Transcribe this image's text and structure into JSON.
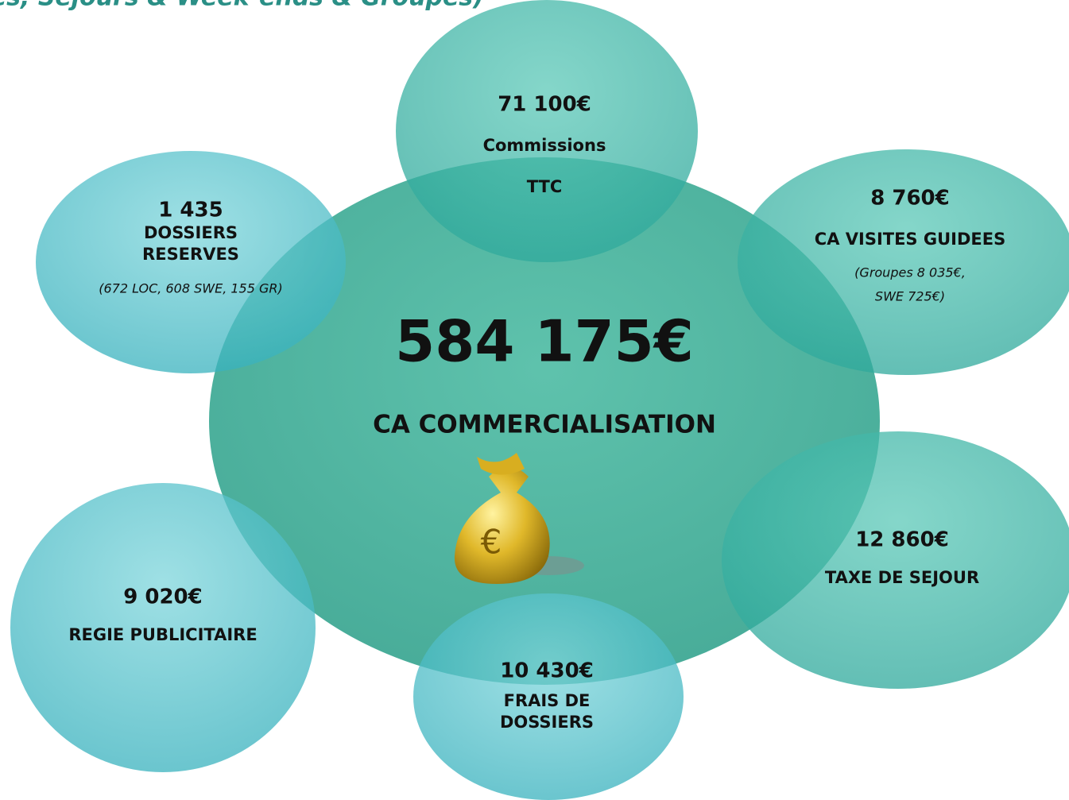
{
  "header": {
    "title": "ces, Séjours & Week-ends & Groupes)"
  },
  "center": {
    "value": "584 175€",
    "label": "CA COMMERCIALISATION"
  },
  "nodes": [
    {
      "value": "71 100€",
      "lines": [
        "Commissions",
        "TTC"
      ]
    },
    {
      "value": "1 435",
      "lines": [
        "DOSSIERS",
        "RESERVES"
      ],
      "notes": [
        "(672 LOC, 608 SWE, 155 GR)"
      ]
    },
    {
      "value": "8 760€",
      "lines": [
        "CA VISITES GUIDEES"
      ],
      "notes": [
        "(Groupes 8 035€,",
        "SWE  725€)"
      ]
    },
    {
      "value": "12 860€",
      "lines": [
        "TAXE DE SEJOUR"
      ]
    },
    {
      "value": "10 430€",
      "lines": [
        "FRAIS DE",
        "DOSSIERS"
      ]
    },
    {
      "value": "9 020€",
      "lines": [
        "REGIE PUBLICITAIRE"
      ]
    }
  ]
}
